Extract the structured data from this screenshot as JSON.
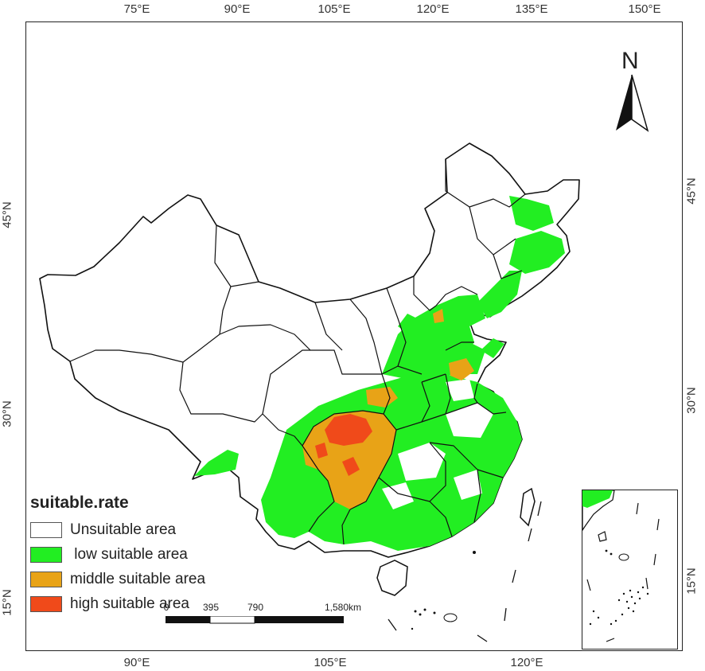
{
  "graticule": {
    "top": [
      "75°E",
      "90°E",
      "105°E",
      "120°E",
      "135°E",
      "150°E"
    ],
    "bottom": [
      "90°E",
      "105°E",
      "120°E"
    ],
    "left": [
      "45°N",
      "30°N",
      "15°N"
    ],
    "right": [
      "45°N",
      "30°N",
      "15°N"
    ]
  },
  "north_arrow": "N",
  "legend": {
    "title": "suitable.rate",
    "items": [
      {
        "label": "Unsuitable area",
        "color": "#ffffff"
      },
      {
        "label": " low suitable area",
        "color": "#22ee22"
      },
      {
        "label": "middle suitable area",
        "color": "#e8a317"
      },
      {
        "label": "high suitable area",
        "color": "#f04a1a"
      }
    ]
  },
  "scale_bar": {
    "labels": [
      "0",
      "395",
      "790",
      "1,580km"
    ]
  },
  "colors": {
    "unsuitable": "#ffffff",
    "low": "#22ee22",
    "middle": "#e8a317",
    "high": "#f04a1a",
    "border": "#111111"
  }
}
